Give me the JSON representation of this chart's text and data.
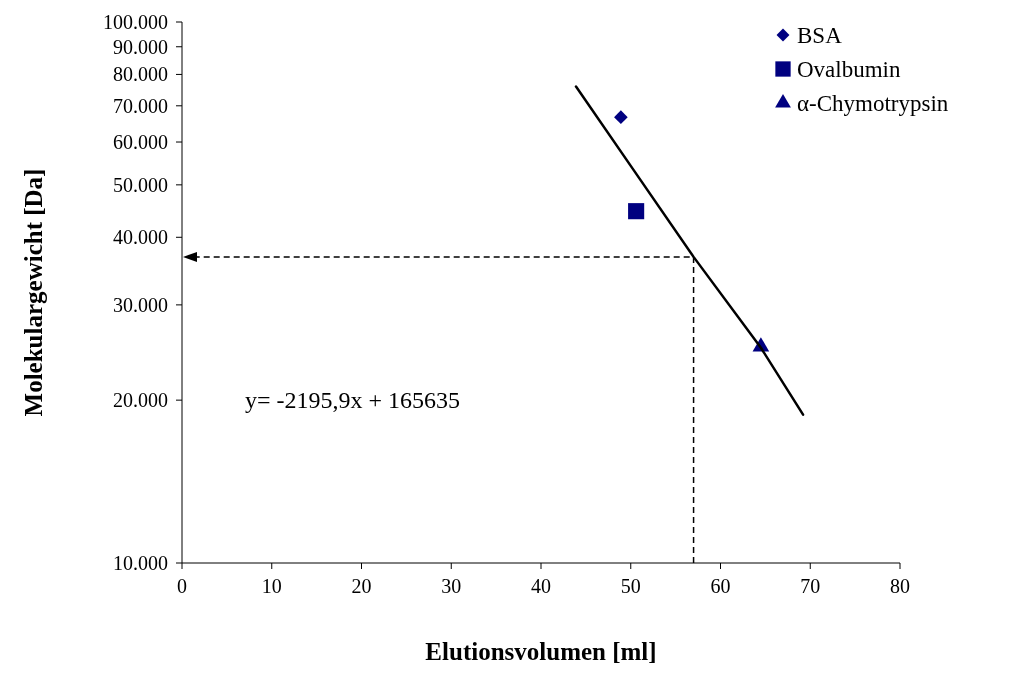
{
  "chart_data": {
    "type": "scatter",
    "xlabel": "Elutionsvolumen [ml]",
    "ylabel": "Molekulargewicht [Da]",
    "log": "y",
    "xlim": [
      0,
      80
    ],
    "ylim": [
      10000,
      100000
    ],
    "xticks": [
      0,
      10,
      20,
      30,
      40,
      50,
      60,
      70,
      80
    ],
    "yticks": [
      {
        "value": 10000,
        "label": "10.000"
      },
      {
        "value": 20000,
        "label": "20.000"
      },
      {
        "value": 30000,
        "label": "30.000"
      },
      {
        "value": 40000,
        "label": "40.000"
      },
      {
        "value": 50000,
        "label": "50.000"
      },
      {
        "value": 60000,
        "label": "60.000"
      },
      {
        "value": 70000,
        "label": "70.000"
      },
      {
        "value": 80000,
        "label": "80.000"
      },
      {
        "value": 90000,
        "label": "90.000"
      },
      {
        "value": 100000,
        "label": "100.000"
      }
    ],
    "grid": false,
    "legend": "top right",
    "series": [
      {
        "name": "BSA",
        "color": "#000080",
        "marker": "diamond",
        "x": [
          48.9
        ],
        "values": [
          66700
        ]
      },
      {
        "name": "Ovalbumin",
        "color": "#000080",
        "marker": "square",
        "x": [
          50.6
        ],
        "values": [
          44700
        ]
      },
      {
        "name": "α-Chymotrypsin",
        "color": "#000080",
        "marker": "triangle",
        "x": [
          64.5
        ],
        "values": [
          25100
        ]
      },
      {
        "type": "line",
        "color": "#000000",
        "marker": "none",
        "line_style": "solid",
        "x": [
          43.9,
          50,
          57,
          64.5,
          69.2
        ],
        "values": [
          76000,
          54200,
          36800,
          25000,
          18800
        ]
      }
    ],
    "annotations": [
      "y= -2195,9x + 165635"
    ]
  }
}
